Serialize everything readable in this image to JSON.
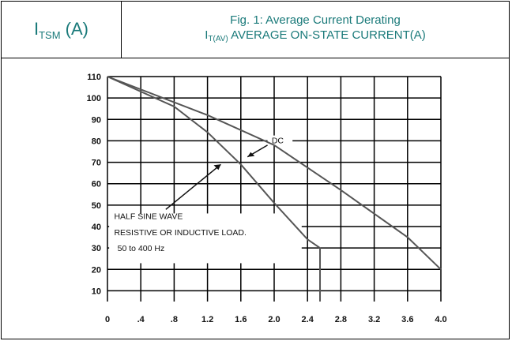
{
  "header": {
    "left_main": "I",
    "left_sub": "TSM",
    "left_unit": " (A)",
    "title_line1": "Fig. 1: Average Current Derating",
    "title_line2_main": "I",
    "title_line2_sub": "T(AV)",
    "title_line2_rest": " AVERAGE ON-STATE CURRENT(A)"
  },
  "chart_data": {
    "type": "line",
    "title": "Fig. 1: Average Current Derating",
    "xlabel": "",
    "ylabel": "",
    "xlim": [
      0,
      4.0
    ],
    "ylim": [
      5,
      110
    ],
    "x_ticks": [
      "0",
      ".4",
      ".8",
      "1.2",
      "1.6",
      "2.0",
      "2.4",
      "2.8",
      "3.2",
      "3.6",
      "4.0"
    ],
    "x_tick_values": [
      0,
      0.4,
      0.8,
      1.2,
      1.6,
      2.0,
      2.4,
      2.8,
      3.2,
      3.6,
      4.0
    ],
    "y_ticks": [
      "10",
      "20",
      "30",
      "40",
      "50",
      "60",
      "70",
      "80",
      "90",
      "100",
      "110"
    ],
    "y_tick_values": [
      10,
      20,
      30,
      40,
      50,
      60,
      70,
      80,
      90,
      100,
      110
    ],
    "grid": true,
    "series": [
      {
        "name": "DC",
        "x": [
          0,
          1.2,
          2.0,
          2.8,
          3.6,
          4.0
        ],
        "y": [
          110,
          92,
          78,
          57,
          35,
          20
        ]
      },
      {
        "name": "",
        "x": [
          0,
          0.8,
          1.2,
          1.6,
          2.0,
          2.4,
          2.55,
          2.55
        ],
        "y": [
          110,
          96,
          84,
          69,
          51,
          34,
          30,
          5
        ]
      }
    ],
    "annotations": {
      "dc_label": "DC",
      "half_sine_line1": "HALF SINE WAVE",
      "half_sine_line2": "RESISTIVE OR INDUCTIVE LOAD.",
      "half_sine_line3": "50 to 400 Hz"
    },
    "colors": {
      "curve": "#555555",
      "grid": "#000000",
      "text": "#111111"
    }
  }
}
